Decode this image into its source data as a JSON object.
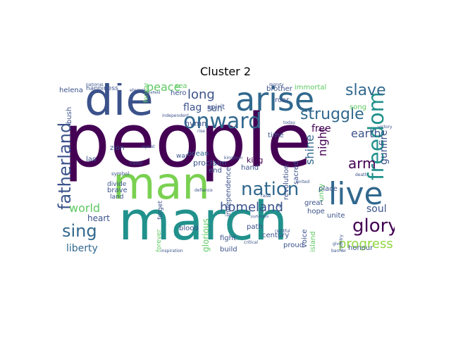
{
  "title": "Cluster 2",
  "palette": {
    "dark_purple": "#440154",
    "indigo": "#3b528b",
    "teal": "#21918c",
    "green": "#5ec962",
    "lime": "#b5de2b",
    "slate": "#31688e"
  },
  "words": {
    "people": "people",
    "march": "march",
    "die": "die",
    "man": "man",
    "arise": "arise",
    "live": "live",
    "onward": "onward",
    "freedom": "freedom",
    "nation": "nation",
    "fatherland": "fatherland",
    "glory": "glory",
    "sing": "sing",
    "struggle": "struggle",
    "slave": "slave",
    "homeland": "homeland",
    "progress": "progress",
    "world": "world",
    "liberty": "liberty",
    "long": "long",
    "peace": "peace",
    "arm": "arm",
    "earth": "earth",
    "shine": "shine",
    "night": "night",
    "gunfire": "gunfire",
    "free": "free",
    "soul": "soul",
    "flag": "flag",
    "sun": "sun",
    "heart": "heart",
    "glorious": "glorious",
    "proclaim": "proclaim",
    "hymn": "hymn",
    "ocean": "ocean",
    "king": "king",
    "hand": "hand",
    "end": "end",
    "independence": "independence",
    "revolution": "revolution",
    "unity": "unity",
    "sacred": "sacred",
    "place": "place",
    "hope": "hope",
    "unite": "unite",
    "great": "great",
    "voice": "voice",
    "island": "island",
    "proud": "proud",
    "century": "century",
    "path": "path",
    "fight": "fight",
    "blood": "blood",
    "build": "build",
    "forever": "forever",
    "forget": "forget",
    "brave": "brave",
    "divide": "divide",
    "land": "land",
    "lao": "lao",
    "zion": "zion",
    "bush": "bush",
    "helena": "helena",
    "happiness": "happiness",
    "forward": "forward",
    "hero": "hero",
    "spirit": "spirit",
    "immortal": "immortal",
    "roar": "roar",
    "brother": "brother",
    "song": "song",
    "honour": "honour",
    "time": "time",
    "war": "war",
    "sea": "sea",
    "national": "national",
    "eternal": "eternal",
    "symbol": "symbol",
    "repeat": "repeat",
    "kingdom": "kingdom",
    "united": "united",
    "give": "give",
    "country": "country",
    "banner": "banner",
    "critical": "critical",
    "dignity": "dignity",
    "rise": "rise",
    "independent": "independent",
    "defiance": "defiance",
    "traitor": "traitor",
    "raise": "raise",
    "victory": "victory",
    "death": "death",
    "fly": "fly",
    "today": "today",
    "battlefield": "battlefield",
    "joyfulness": "joyfulness",
    "rightful": "rightful",
    "inspiration": "inspiration"
  }
}
